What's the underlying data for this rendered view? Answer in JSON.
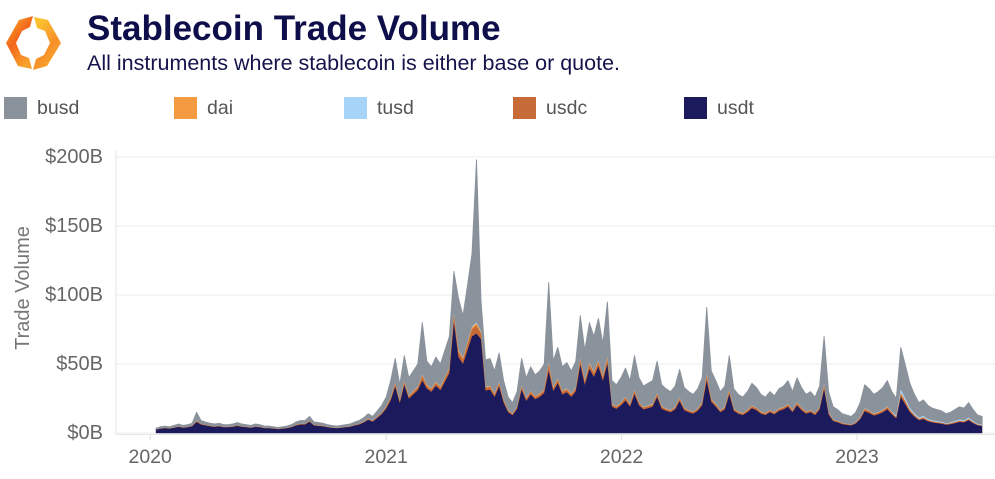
{
  "chart_data": {
    "type": "area",
    "stacked": true,
    "title": "Stablecoin Trade Volume",
    "subtitle": "All instruments where stablecoin is either base or quote.",
    "xlabel": "",
    "ylabel": "Trade Volume",
    "y_unit": "USD billions",
    "x_start": "2020-01-10",
    "x_step_days": 7,
    "xlim": [
      "2019-11-09",
      "2023-08-03"
    ],
    "ylim": [
      0,
      200
    ],
    "grid": true,
    "legend_position": "top",
    "yticks": [
      {
        "value": 0,
        "label": "$0B"
      },
      {
        "value": 50,
        "label": "$50B"
      },
      {
        "value": 100,
        "label": "$100B"
      },
      {
        "value": 150,
        "label": "$150B"
      },
      {
        "value": 200,
        "label": "$200B"
      }
    ],
    "xticks": [
      {
        "value": "2020-01-01",
        "label": "2020"
      },
      {
        "value": "2021-01-01",
        "label": "2021"
      },
      {
        "value": "2022-01-01",
        "label": "2022"
      },
      {
        "value": "2023-01-01",
        "label": "2023"
      }
    ],
    "stack_order": [
      "usdt",
      "usdc",
      "dai",
      "tusd",
      "busd"
    ],
    "series": [
      {
        "name": "busd",
        "color": "#8a929c",
        "values": [
          1.0,
          1.2,
          1.3,
          1.2,
          1.5,
          1.7,
          1.5,
          1.6,
          1.8,
          6.1,
          2.4,
          2.2,
          1.8,
          1.7,
          1.8,
          1.6,
          1.6,
          1.7,
          2.0,
          1.7,
          1.6,
          1.5,
          1.7,
          1.6,
          1.3,
          1.3,
          1.2,
          1.1,
          1.2,
          1.3,
          1.6,
          2.2,
          2.4,
          2.4,
          3.1,
          2.2,
          2.0,
          1.8,
          1.6,
          1.5,
          1.3,
          1.5,
          1.6,
          1.7,
          2.2,
          2.4,
          2.9,
          3.7,
          3.1,
          4.2,
          5.3,
          6.9,
          12.3,
          17.5,
          11.3,
          18.2,
          13.0,
          14.6,
          16.2,
          37.6,
          16.9,
          15.6,
          17.8,
          16.2,
          19.5,
          22.7,
          30.5,
          37.6,
          30.3,
          41.1,
          52.8,
          117.7,
          22.7,
          19.4,
          19.7,
          16.4,
          21.2,
          13.9,
          9.5,
          8.0,
          10.9,
          19.7,
          14.6,
          17.6,
          15.3,
          16.4,
          18.2,
          58.0,
          18.9,
          22.6,
          17.6,
          18.6,
          16.4,
          18.9,
          31.0,
          21.9,
          29.2,
          25.5,
          30.4,
          23.7,
          39.7,
          16.9,
          15.5,
          17.8,
          20.9,
          16.9,
          24.9,
          17.8,
          15.1,
          16.0,
          16.9,
          23.1,
          15.5,
          14.2,
          13.3,
          15.1,
          20.5,
          14.7,
          13.3,
          12.5,
          14.2,
          17.8,
          48.0,
          20.0,
          16.9,
          13.3,
          15.1,
          24.9,
          14.2,
          12.5,
          11.6,
          13.3,
          16.0,
          14.7,
          12.5,
          11.6,
          13.3,
          12.0,
          14.2,
          15.1,
          16.9,
          13.3,
          17.8,
          14.7,
          12.5,
          13.3,
          11.6,
          15.1,
          34.3,
          14.7,
          9.2,
          8.2,
          6.9,
          6.4,
          5.9,
          7.2,
          10.8,
          17.0,
          15.7,
          13.7,
          14.7,
          16.2,
          18.6,
          14.7,
          12.2,
          30.4,
          23.9,
          17.7,
          13.7,
          10.8,
          11.7,
          9.8,
          8.8,
          8.3,
          7.9,
          6.8,
          7.3,
          8.3,
          9.2,
          8.8,
          10.8,
          8.3,
          6.4,
          5.9
        ]
      },
      {
        "name": "dai",
        "color": "#f49b41",
        "values": [
          0.0,
          0.0,
          0.1,
          0.0,
          0.1,
          0.1,
          0.1,
          0.1,
          0.1,
          0.2,
          0.1,
          0.1,
          0.1,
          0.1,
          0.1,
          0.1,
          0.1,
          0.1,
          0.1,
          0.1,
          0.1,
          0.1,
          0.1,
          0.1,
          0.1,
          0.1,
          0.0,
          0.0,
          0.0,
          0.1,
          0.1,
          0.1,
          0.1,
          0.1,
          0.1,
          0.1,
          0.1,
          0.1,
          0.1,
          0.1,
          0.1,
          0.1,
          0.1,
          0.1,
          0.1,
          0.1,
          0.1,
          0.1,
          0.1,
          0.2,
          0.2,
          0.3,
          0.4,
          0.5,
          0.4,
          0.6,
          0.4,
          0.5,
          0.5,
          0.8,
          0.5,
          0.5,
          0.6,
          0.5,
          0.6,
          0.7,
          1.2,
          1.0,
          0.9,
          1.1,
          1.3,
          1.5,
          1.0,
          0.5,
          0.5,
          0.5,
          0.6,
          0.4,
          0.3,
          0.2,
          0.3,
          0.5,
          0.4,
          0.5,
          0.4,
          0.5,
          0.5,
          1.1,
          0.5,
          0.6,
          0.5,
          0.5,
          0.5,
          0.5,
          0.9,
          0.6,
          0.8,
          0.7,
          0.8,
          0.7,
          1.0,
          0.4,
          0.4,
          0.4,
          0.5,
          0.4,
          0.6,
          0.4,
          0.3,
          0.4,
          0.4,
          0.5,
          0.4,
          0.3,
          0.3,
          0.3,
          0.5,
          0.3,
          0.3,
          0.3,
          0.3,
          0.4,
          0.9,
          0.5,
          0.4,
          0.3,
          0.3,
          0.6,
          0.3,
          0.3,
          0.3,
          0.3,
          0.4,
          0.3,
          0.3,
          0.3,
          0.3,
          0.3,
          0.3,
          0.3,
          0.4,
          0.3,
          0.4,
          0.3,
          0.3,
          0.3,
          0.3,
          0.3,
          0.7,
          0.3,
          0.2,
          0.2,
          0.1,
          0.1,
          0.1,
          0.2,
          0.2,
          0.4,
          0.3,
          0.3,
          0.3,
          0.3,
          0.4,
          0.3,
          0.3,
          0.6,
          0.5,
          0.4,
          0.3,
          0.2,
          0.2,
          0.2,
          0.2,
          0.2,
          0.2,
          0.1,
          0.2,
          0.2,
          0.2,
          0.2,
          0.2,
          0.2,
          0.1,
          0.1
        ]
      },
      {
        "name": "tusd",
        "color": "#a7d3f8",
        "values": [
          0.0,
          0.0,
          0.0,
          0.0,
          0.0,
          0.0,
          0.0,
          0.0,
          0.0,
          0.1,
          0.0,
          0.0,
          0.0,
          0.0,
          0.0,
          0.0,
          0.0,
          0.0,
          0.0,
          0.0,
          0.0,
          0.0,
          0.0,
          0.0,
          0.0,
          0.0,
          0.0,
          0.0,
          0.0,
          0.0,
          0.0,
          0.0,
          0.0,
          0.0,
          0.1,
          0.0,
          0.0,
          0.0,
          0.0,
          0.0,
          0.0,
          0.0,
          0.0,
          0.0,
          0.0,
          0.0,
          0.1,
          0.1,
          0.1,
          0.1,
          0.1,
          0.1,
          0.2,
          0.3,
          0.2,
          0.3,
          0.2,
          0.2,
          0.3,
          0.4,
          0.3,
          0.2,
          0.3,
          0.3,
          0.3,
          0.4,
          0.6,
          0.5,
          0.4,
          0.5,
          0.7,
          0.8,
          0.5,
          0.3,
          0.3,
          0.2,
          0.3,
          0.2,
          0.1,
          0.1,
          0.2,
          0.3,
          0.2,
          0.2,
          0.2,
          0.2,
          0.3,
          0.5,
          0.3,
          0.3,
          0.2,
          0.3,
          0.2,
          0.3,
          0.4,
          0.3,
          0.4,
          0.4,
          0.4,
          0.3,
          0.5,
          0.2,
          0.2,
          0.2,
          0.2,
          0.2,
          0.3,
          0.2,
          0.2,
          0.2,
          0.2,
          0.3,
          0.2,
          0.2,
          0.2,
          0.2,
          0.2,
          0.2,
          0.2,
          0.1,
          0.2,
          0.2,
          0.5,
          0.2,
          0.2,
          0.2,
          0.2,
          0.3,
          0.2,
          0.1,
          0.1,
          0.2,
          0.2,
          0.2,
          0.1,
          0.1,
          0.2,
          0.1,
          0.2,
          0.2,
          0.2,
          0.2,
          0.2,
          0.2,
          0.1,
          0.2,
          0.1,
          0.2,
          0.7,
          0.3,
          0.2,
          0.2,
          0.1,
          0.1,
          0.1,
          0.2,
          0.2,
          0.4,
          0.3,
          0.3,
          0.3,
          0.3,
          0.4,
          0.3,
          1.0,
          2.5,
          2.0,
          1.4,
          1.1,
          0.9,
          1.0,
          0.8,
          0.7,
          0.7,
          0.6,
          0.6,
          0.6,
          0.7,
          0.8,
          0.7,
          0.9,
          0.7,
          0.5,
          0.5
        ]
      },
      {
        "name": "usdc",
        "color": "#c66a37",
        "values": [
          0.1,
          0.2,
          0.2,
          0.2,
          0.2,
          0.3,
          0.2,
          0.2,
          0.3,
          0.6,
          0.4,
          0.3,
          0.3,
          0.3,
          0.3,
          0.2,
          0.2,
          0.3,
          0.3,
          0.3,
          0.2,
          0.2,
          0.3,
          0.2,
          0.2,
          0.2,
          0.2,
          0.2,
          0.2,
          0.2,
          0.2,
          0.3,
          0.4,
          0.4,
          0.5,
          0.3,
          0.3,
          0.3,
          0.2,
          0.2,
          0.2,
          0.2,
          0.2,
          0.3,
          0.3,
          0.4,
          0.4,
          0.6,
          0.5,
          0.6,
          0.8,
          1.0,
          1.5,
          2.2,
          1.4,
          2.2,
          1.6,
          1.8,
          2.0,
          3.2,
          2.1,
          1.9,
          2.2,
          2.0,
          2.4,
          2.8,
          4.7,
          3.9,
          3.4,
          4.3,
          5.2,
          6.0,
          3.8,
          2.1,
          2.2,
          1.8,
          2.3,
          1.5,
          1.0,
          0.9,
          1.2,
          2.2,
          1.6,
          1.9,
          1.7,
          1.8,
          2.0,
          4.4,
          2.1,
          2.5,
          1.9,
          2.0,
          1.8,
          2.1,
          3.4,
          2.4,
          3.2,
          2.8,
          3.3,
          2.6,
          3.8,
          1.5,
          1.4,
          1.6,
          1.9,
          1.5,
          2.2,
          1.6,
          1.4,
          1.4,
          1.5,
          2.1,
          1.4,
          1.3,
          1.2,
          1.4,
          1.8,
          1.3,
          1.2,
          1.1,
          1.3,
          1.6,
          3.6,
          1.8,
          1.5,
          1.2,
          1.4,
          2.2,
          1.3,
          1.1,
          1.0,
          1.2,
          1.4,
          1.3,
          1.1,
          1.0,
          1.2,
          1.1,
          1.3,
          1.4,
          1.5,
          1.2,
          1.6,
          1.3,
          1.1,
          1.2,
          1.0,
          1.4,
          2.8,
          1.2,
          0.8,
          0.7,
          0.6,
          0.5,
          0.5,
          0.6,
          0.9,
          1.4,
          1.3,
          1.1,
          1.2,
          1.3,
          1.5,
          1.2,
          1.0,
          2.5,
          2.0,
          1.4,
          1.1,
          0.9,
          1.0,
          0.8,
          0.7,
          0.7,
          0.6,
          0.6,
          0.6,
          0.7,
          0.8,
          0.7,
          0.9,
          0.7,
          0.5,
          0.5
        ]
      },
      {
        "name": "usdt",
        "color": "#1b1a5c",
        "values": [
          2.4,
          3.1,
          3.4,
          3.1,
          3.7,
          4.4,
          3.7,
          4.1,
          4.8,
          8.0,
          6.1,
          5.4,
          4.8,
          4.4,
          4.8,
          4.1,
          4.1,
          4.4,
          5.1,
          4.4,
          4.1,
          3.7,
          4.4,
          4.1,
          3.4,
          3.4,
          3.1,
          2.7,
          3.1,
          3.4,
          4.1,
          5.4,
          6.1,
          6.1,
          8.2,
          5.4,
          5.1,
          4.8,
          4.1,
          3.7,
          3.4,
          3.7,
          4.1,
          4.4,
          5.4,
          6.1,
          7.5,
          9.5,
          8.2,
          10.9,
          13.6,
          17.7,
          23.6,
          33.5,
          21.7,
          34.7,
          24.8,
          27.9,
          31.0,
          38.0,
          32.2,
          29.8,
          34.1,
          31.0,
          37.2,
          43.4,
          80.0,
          55.0,
          50.0,
          60.0,
          70.0,
          72.0,
          68.0,
          30.7,
          31.3,
          26.1,
          33.6,
          22.0,
          15.1,
          12.8,
          17.4,
          31.3,
          23.2,
          27.8,
          24.4,
          26.1,
          29.0,
          45.0,
          30.2,
          36.0,
          27.8,
          29.6,
          26.1,
          30.2,
          49.3,
          34.8,
          46.4,
          40.6,
          48.1,
          37.7,
          50.0,
          19.0,
          17.5,
          20.0,
          23.5,
          19.0,
          28.0,
          20.0,
          17.0,
          18.0,
          19.0,
          26.0,
          17.5,
          16.0,
          15.0,
          17.0,
          23.0,
          16.5,
          15.0,
          14.0,
          16.0,
          20.0,
          38.0,
          22.5,
          19.0,
          15.0,
          17.0,
          28.0,
          16.0,
          14.0,
          13.0,
          15.0,
          18.0,
          16.5,
          14.0,
          13.0,
          15.0,
          13.5,
          16.0,
          17.0,
          19.0,
          15.0,
          20.0,
          16.5,
          14.0,
          15.0,
          13.0,
          17.0,
          31.5,
          13.5,
          8.6,
          7.7,
          6.3,
          5.9,
          5.4,
          6.8,
          9.9,
          15.8,
          14.4,
          12.6,
          13.5,
          14.9,
          17.1,
          13.5,
          10.5,
          26.0,
          20.6,
          15.1,
          11.8,
          9.2,
          10.1,
          8.4,
          7.6,
          7.1,
          6.7,
          5.9,
          6.3,
          7.1,
          8.0,
          7.6,
          9.2,
          7.1,
          5.5,
          5.0
        ]
      }
    ]
  }
}
